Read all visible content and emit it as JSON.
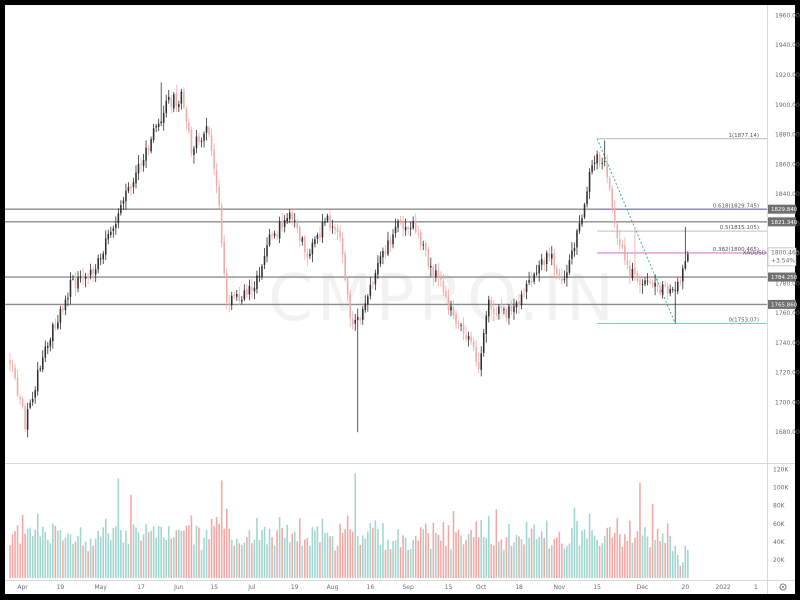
{
  "watermark": "CMPRO.IN",
  "colors": {
    "up": "#2e2e2e",
    "down": "#f2aaa8",
    "vol_up": "#9fd6cf",
    "vol_down": "#f4a7a4",
    "hline": "#8c8c8c",
    "label_bg": "#6f6f6f",
    "fib_start": "#b9b9b9",
    "fib_618": "#8a84c9",
    "fib_05": "#bfbfbf",
    "fib_382": "#d97ad9",
    "fib_0": "#7ed3a3",
    "trend": "#2aa7a0",
    "price_label_bg": "#ffffff"
  },
  "chart_data": {
    "type": "candlestick",
    "price_axis": {
      "ylim": [
        1660,
        1965
      ],
      "ticks": [
        "1960.000",
        "1940.000",
        "1920.000",
        "1900.000",
        "1880.000",
        "1860.000",
        "1840.000",
        "1820.000",
        "1800.000",
        "1780.000",
        "1760.000",
        "1740.000",
        "1720.000",
        "1700.000",
        "1680.000"
      ],
      "tick_values": [
        1960,
        1940,
        1920,
        1900,
        1880,
        1860,
        1840,
        1820,
        1800,
        1780,
        1760,
        1740,
        1720,
        1700,
        1680
      ]
    },
    "volume_axis": {
      "ylim": [
        0,
        125000
      ],
      "ticks": [
        "120K",
        "100K",
        "80K",
        "60K",
        "40K",
        "20K"
      ],
      "tick_values": [
        120000,
        100000,
        80000,
        60000,
        40000,
        20000
      ]
    },
    "x_axis": {
      "labels": [
        "Apr",
        "19",
        "May",
        "17",
        "Jun",
        "15",
        "Jul",
        "19",
        "Aug",
        "16",
        "Sep",
        "15",
        "Oct",
        "18",
        "Nov",
        "15",
        "Dec",
        "20",
        "2022",
        "1"
      ],
      "label_bar_index": [
        5,
        20,
        36,
        52,
        67,
        81,
        96,
        113,
        128,
        143,
        158,
        174,
        187,
        202,
        218,
        233,
        251,
        268,
        283,
        296
      ]
    },
    "horizontal_levels": [
      {
        "value": 1829.84,
        "label": "1829.840"
      },
      {
        "value": 1821.34,
        "label": "1821.340"
      },
      {
        "value": 1784.25,
        "label": "1784.250"
      },
      {
        "value": 1765.86,
        "label": "1765.860"
      }
    ],
    "last_price": {
      "value": "1800.465",
      "symbol": "XAUUSD",
      "change": "+3.54%"
    },
    "fibonacci": [
      {
        "ratio": 1,
        "price": 1877.14,
        "text": "1(1877.14)"
      },
      {
        "ratio": 0.618,
        "price": 1829.745,
        "text": "0.618(1829.745)"
      },
      {
        "ratio": 0.5,
        "price": 1815.105,
        "text": "0.5(1815.105)"
      },
      {
        "ratio": 0.382,
        "price": 1800.465,
        "text": "0.382(1800.465)"
      },
      {
        "ratio": 0,
        "price": 1753.07,
        "text": "0(1753.07)"
      }
    ],
    "fib_bar_range": [
      233,
      298
    ],
    "trend_line": {
      "from_bar": 233,
      "from_price": 1877.14,
      "to_bar": 264,
      "to_price": 1753.07
    },
    "anchors": [
      {
        "bar": 0,
        "price": 1730
      },
      {
        "bar": 6,
        "price": 1686
      },
      {
        "bar": 14,
        "price": 1738
      },
      {
        "bar": 24,
        "price": 1778
      },
      {
        "bar": 34,
        "price": 1790
      },
      {
        "bar": 44,
        "price": 1830
      },
      {
        "bar": 53,
        "price": 1865
      },
      {
        "bar": 62,
        "price": 1900
      },
      {
        "bar": 68,
        "price": 1905
      },
      {
        "bar": 72,
        "price": 1870
      },
      {
        "bar": 78,
        "price": 1885
      },
      {
        "bar": 82,
        "price": 1848
      },
      {
        "bar": 86,
        "price": 1770
      },
      {
        "bar": 92,
        "price": 1770
      },
      {
        "bar": 98,
        "price": 1782
      },
      {
        "bar": 103,
        "price": 1810
      },
      {
        "bar": 111,
        "price": 1825
      },
      {
        "bar": 118,
        "price": 1800
      },
      {
        "bar": 126,
        "price": 1823
      },
      {
        "bar": 131,
        "price": 1810
      },
      {
        "bar": 136,
        "price": 1748
      },
      {
        "bar": 140,
        "price": 1760
      },
      {
        "bar": 145,
        "price": 1788
      },
      {
        "bar": 153,
        "price": 1818
      },
      {
        "bar": 160,
        "price": 1822
      },
      {
        "bar": 166,
        "price": 1795
      },
      {
        "bar": 171,
        "price": 1778
      },
      {
        "bar": 176,
        "price": 1758
      },
      {
        "bar": 181,
        "price": 1745
      },
      {
        "bar": 186,
        "price": 1725
      },
      {
        "bar": 190,
        "price": 1765
      },
      {
        "bar": 196,
        "price": 1760
      },
      {
        "bar": 202,
        "price": 1765
      },
      {
        "bar": 208,
        "price": 1788
      },
      {
        "bar": 214,
        "price": 1798
      },
      {
        "bar": 220,
        "price": 1782
      },
      {
        "bar": 226,
        "price": 1820
      },
      {
        "bar": 231,
        "price": 1860
      },
      {
        "bar": 236,
        "price": 1866
      },
      {
        "bar": 241,
        "price": 1812
      },
      {
        "bar": 245,
        "price": 1790
      },
      {
        "bar": 250,
        "price": 1782
      },
      {
        "bar": 256,
        "price": 1778
      },
      {
        "bar": 262,
        "price": 1775
      },
      {
        "bar": 266,
        "price": 1784
      },
      {
        "bar": 269,
        "price": 1800
      }
    ],
    "bar_count": 270,
    "spikes": [
      {
        "bar": 6,
        "low": 1680
      },
      {
        "bar": 60,
        "high": 1915
      },
      {
        "bar": 138,
        "low": 1680
      },
      {
        "bar": 236,
        "high": 1876
      },
      {
        "bar": 248,
        "high": 1818
      },
      {
        "bar": 264,
        "low": 1753
      },
      {
        "bar": 268,
        "high": 1818
      }
    ],
    "volume_spikes": [
      {
        "bar": 43,
        "value": 110000
      },
      {
        "bar": 48,
        "value": 92000
      },
      {
        "bar": 84,
        "value": 108000
      },
      {
        "bar": 137,
        "value": 116000
      },
      {
        "bar": 250,
        "value": 105000
      },
      {
        "bar": 255,
        "value": 82000
      },
      {
        "bar": 176,
        "value": 74000
      },
      {
        "bar": 193,
        "value": 76000
      },
      {
        "bar": 224,
        "value": 78000
      },
      {
        "bar": 5,
        "value": 70000
      }
    ]
  }
}
